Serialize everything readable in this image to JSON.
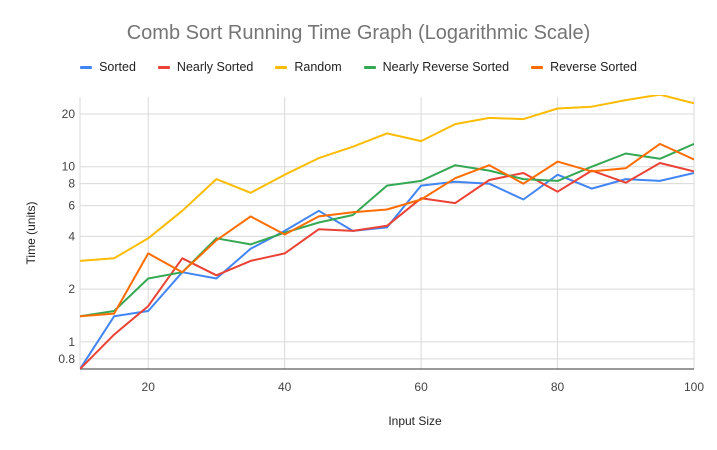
{
  "chart_data": {
    "type": "line",
    "title": "Comb Sort Running Time Graph (Logarithmic Scale)",
    "xlabel": "Input Size",
    "ylabel": "Time (units)",
    "xlim": [
      10,
      100
    ],
    "ylim": [
      0.7,
      25
    ],
    "yscale": "log",
    "grid": true,
    "legend_position": "top",
    "x_ticks": [
      20,
      40,
      60,
      80,
      100
    ],
    "y_ticks": [
      0.8,
      1,
      2,
      4,
      6,
      8,
      10,
      20
    ],
    "x": [
      10,
      15,
      20,
      25,
      30,
      35,
      40,
      45,
      50,
      55,
      60,
      65,
      70,
      75,
      80,
      85,
      90,
      95,
      100
    ],
    "series": [
      {
        "name": "Sorted",
        "color": "#4285f4",
        "values": [
          0.7,
          1.4,
          1.5,
          2.5,
          2.3,
          3.4,
          4.3,
          5.6,
          4.3,
          4.5,
          7.8,
          8.2,
          8.0,
          6.5,
          9.0,
          7.5,
          8.5,
          8.3,
          9.2
        ]
      },
      {
        "name": "Nearly Sorted",
        "color": "#ea4335",
        "values": [
          0.7,
          1.1,
          1.6,
          3.0,
          2.4,
          2.9,
          3.2,
          4.4,
          4.3,
          4.6,
          6.6,
          6.2,
          8.4,
          9.2,
          7.2,
          9.5,
          8.1,
          10.5,
          9.4
        ]
      },
      {
        "name": "Random",
        "color": "#fbbc04",
        "values": [
          2.9,
          3.0,
          3.9,
          5.6,
          8.5,
          7.1,
          9.0,
          11.2,
          13.0,
          15.5,
          14.0,
          17.5,
          19.0,
          18.7,
          21.5,
          22.0,
          24.0,
          25.8,
          23.0
        ]
      },
      {
        "name": "Nearly Reverse Sorted",
        "color": "#34a853",
        "values": [
          1.4,
          1.5,
          2.3,
          2.5,
          3.9,
          3.6,
          4.2,
          4.8,
          5.3,
          7.8,
          8.3,
          10.2,
          9.5,
          8.5,
          8.3,
          10.0,
          11.9,
          11.1,
          13.5
        ]
      },
      {
        "name": "Reverse Sorted",
        "color": "#ff6d01",
        "values": [
          1.4,
          1.45,
          3.2,
          2.5,
          3.8,
          5.2,
          4.1,
          5.2,
          5.5,
          5.7,
          6.5,
          8.6,
          10.2,
          8.0,
          10.7,
          9.4,
          9.8,
          13.5,
          11.0
        ]
      }
    ]
  }
}
